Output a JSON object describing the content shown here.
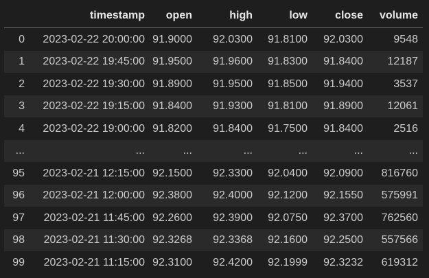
{
  "table": {
    "columns": [
      "",
      "timestamp",
      "open",
      "high",
      "low",
      "close",
      "volume"
    ],
    "rows": [
      {
        "index": "0",
        "cells": [
          "2023-02-22 20:00:00",
          "91.9000",
          "92.0300",
          "91.8100",
          "92.0300",
          "9548"
        ]
      },
      {
        "index": "1",
        "cells": [
          "2023-02-22 19:45:00",
          "91.9500",
          "91.9600",
          "91.8300",
          "91.8400",
          "12187"
        ]
      },
      {
        "index": "2",
        "cells": [
          "2023-02-22 19:30:00",
          "91.8900",
          "91.9500",
          "91.8500",
          "91.9400",
          "3537"
        ]
      },
      {
        "index": "3",
        "cells": [
          "2023-02-22 19:15:00",
          "91.8400",
          "91.9300",
          "91.8100",
          "91.8900",
          "12061"
        ]
      },
      {
        "index": "4",
        "cells": [
          "2023-02-22 19:00:00",
          "91.8200",
          "91.8400",
          "91.7500",
          "91.8400",
          "2516"
        ]
      },
      {
        "index": "...",
        "cells": [
          "...",
          "...",
          "...",
          "...",
          "...",
          "..."
        ]
      },
      {
        "index": "95",
        "cells": [
          "2023-02-21 12:15:00",
          "92.1500",
          "92.3300",
          "92.0400",
          "92.0900",
          "816760"
        ]
      },
      {
        "index": "96",
        "cells": [
          "2023-02-21 12:00:00",
          "92.3800",
          "92.4000",
          "92.1200",
          "92.1550",
          "575991"
        ]
      },
      {
        "index": "97",
        "cells": [
          "2023-02-21 11:45:00",
          "92.2600",
          "92.3900",
          "92.0750",
          "92.3700",
          "762560"
        ]
      },
      {
        "index": "98",
        "cells": [
          "2023-02-21 11:30:00",
          "92.3268",
          "92.3368",
          "92.1600",
          "92.2500",
          "557566"
        ]
      },
      {
        "index": "99",
        "cells": [
          "2023-02-21 11:15:00",
          "92.3100",
          "92.4200",
          "92.1999",
          "92.3232",
          "619312"
        ]
      }
    ]
  },
  "colors": {
    "background": "#1e1e1e",
    "stripe": "#2a2a2a",
    "text": "#cccccc",
    "header_text": "#e6e6e6",
    "header_border": "#6b6b6b"
  }
}
